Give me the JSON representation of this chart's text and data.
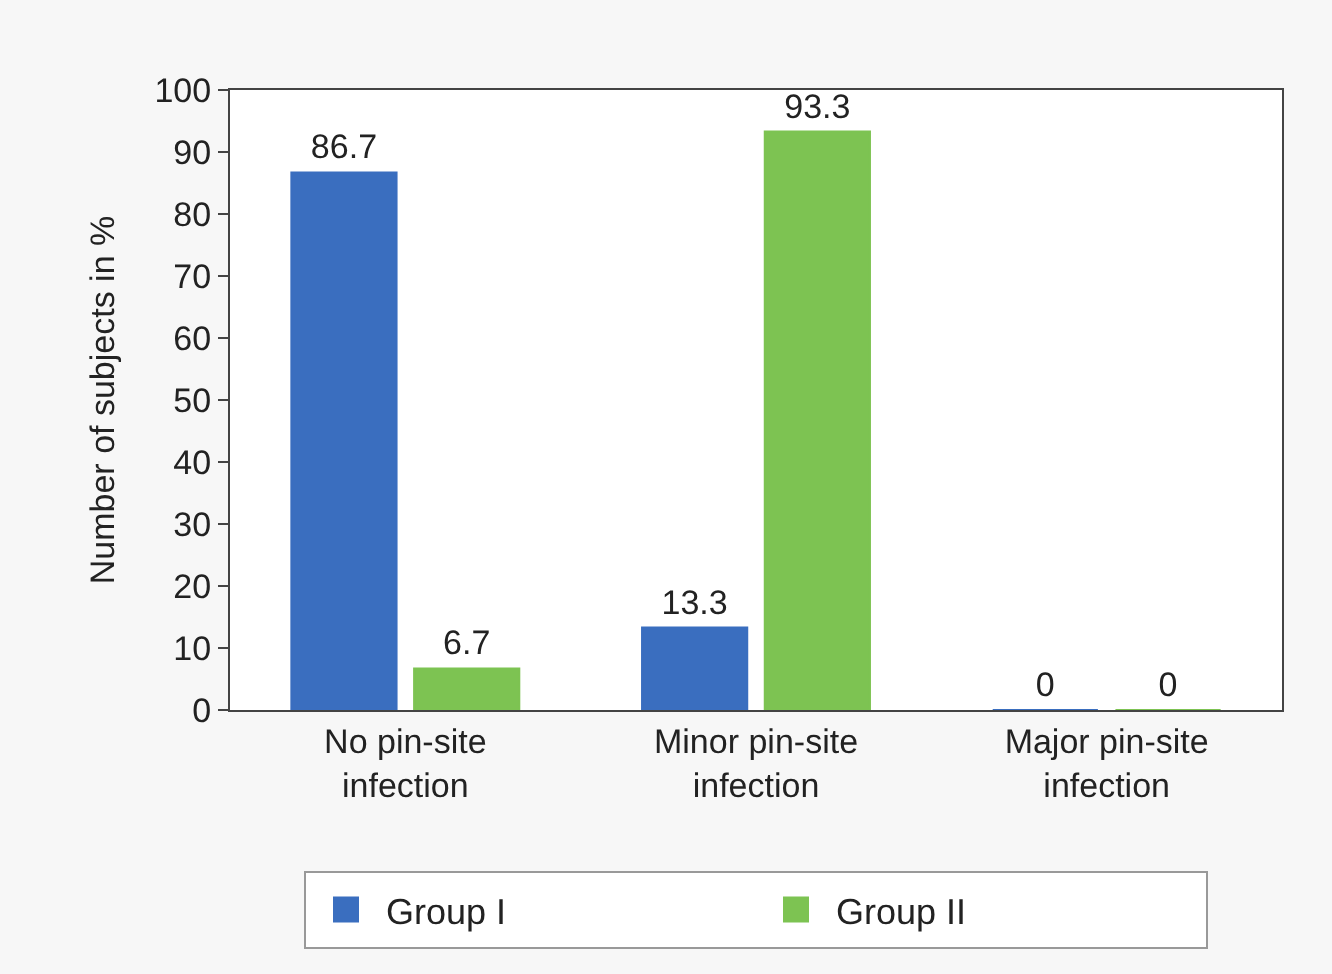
{
  "chart_data": {
    "type": "bar",
    "ylabel": "Number of subjects in %",
    "categories": [
      "No pin-site infection",
      "Minor pin-site infection",
      "Major pin-site infection"
    ],
    "series": [
      {
        "name": "Group I",
        "color": "#3a6ebf",
        "values": [
          86.7,
          13.3,
          0
        ]
      },
      {
        "name": "Group II",
        "color": "#7dc352",
        "values": [
          6.7,
          93.3,
          0
        ]
      }
    ],
    "ylim": [
      0,
      100
    ],
    "yticks": [
      0,
      10,
      20,
      30,
      40,
      50,
      60,
      70,
      80,
      90,
      100
    ],
    "data_labels": true,
    "legend": "bottom"
  }
}
